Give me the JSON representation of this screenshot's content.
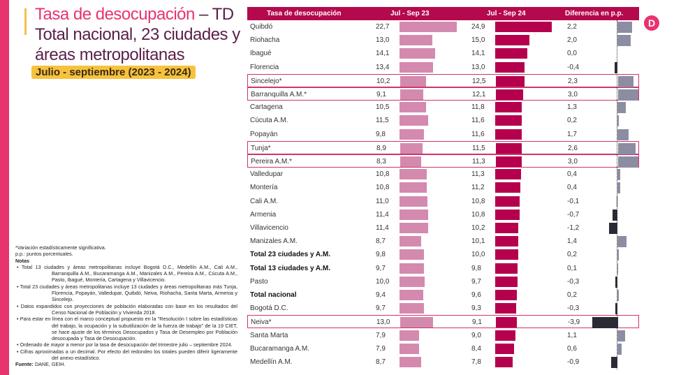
{
  "title": {
    "line1_pink": "Tasa de desocupación",
    "line1_dark": " – TD",
    "line2": "Total nacional, 23 ciudades y",
    "line3": "áreas metropolitanas",
    "period": "Julio - septiembre (2023 - 2024)"
  },
  "logo": "D",
  "notes": {
    "sig": "*Variación estadísticamente significativa.",
    "pp": "p.p.: puntos porcentuales.",
    "heading": "Notas",
    "items": [
      "• Total 13 ciudades y áreas metropolitanas incluye Bogotá D.C., Medellín A.M., Cali A.M., Barranquilla A.M., Bucaramanga A.M., Manizales A.M., Pereira A.M., Cúcuta A.M., Pasto, Ibagué, Montería, Cartagena y Villavicencio.",
      "• Total 23 ciudades y áreas metropolitanas incluye 13 ciudades y áreas metropolitanas más Tunja, Florencia, Popayán, Valledupar, Quibdó, Neiva, Riohacha, Santa Marta, Armenia y Sincelejo.",
      "• Datos expandidos con proyecciones de población elaboradas con base en los resultados del Censo Nacional de Población y Vivienda 2018.",
      "• Para estar en línea con el marco conceptual propuesto en la \"Resolución I sobre las estadísticas del trabajo, la ocupación y la subutilización de la fuerza de trabajo\" de la 19 CIET, se hace ajuste de los términos Desocupados y Tasa de Desempleo por Población desocupada y Tasa de Desocupación.",
      "• Ordenado de mayor a menor por la tasa de desocupación del trimestre julio – septiembre 2024.",
      "• Cifras aproximadas a un decimal. Por efecto del redondeo los totales pueden diferir ligeramente del anexo estadístico."
    ],
    "source_label": "Fuente:",
    "source": " DANE, GEIH."
  },
  "chart_data": {
    "type": "table",
    "columns": [
      "Tasa de desocupación",
      "Jul - Sep 23",
      "Jul - Sep 24",
      "Diferencia en p.p."
    ],
    "colors": {
      "sep23": "#d48aae",
      "sep24": "#b5004e",
      "diff_pos": "#8c8ca2",
      "diff_neg": "#2b2b36",
      "header": "#b5094e",
      "highlight": "#d2336a"
    },
    "rows": [
      {
        "name": "Quibdó",
        "v23": "22,7",
        "v24": "24,9",
        "diff": "2,2"
      },
      {
        "name": "Riohacha",
        "v23": "13,0",
        "v24": "15,0",
        "diff": "2,0"
      },
      {
        "name": "Ibagué",
        "v23": "14,1",
        "v24": "14,1",
        "diff": "0,0"
      },
      {
        "name": "Florencia",
        "v23": "13,4",
        "v24": "13,0",
        "diff": "-0,4"
      },
      {
        "name": "Sincelejo*",
        "v23": "10,2",
        "v24": "12,5",
        "diff": "2,3",
        "sig": true
      },
      {
        "name": "Barranquilla A.M.*",
        "v23": "9,1",
        "v24": "12,1",
        "diff": "3,0",
        "sig": true
      },
      {
        "name": "Cartagena",
        "v23": "10,5",
        "v24": "11,8",
        "diff": "1,3"
      },
      {
        "name": "Cúcuta A.M.",
        "v23": "11,5",
        "v24": "11,6",
        "diff": "0,2"
      },
      {
        "name": "Popayán",
        "v23": "9,8",
        "v24": "11,6",
        "diff": "1,7"
      },
      {
        "name": "Tunja*",
        "v23": "8,9",
        "v24": "11,5",
        "diff": "2,6",
        "sig": true
      },
      {
        "name": "Pereira A.M.*",
        "v23": "8,3",
        "v24": "11,3",
        "diff": "3,0",
        "sig": true
      },
      {
        "name": "Valledupar",
        "v23": "10,8",
        "v24": "11,3",
        "diff": "0,4"
      },
      {
        "name": "Montería",
        "v23": "10,8",
        "v24": "11,2",
        "diff": "0,4"
      },
      {
        "name": "Cali A.M.",
        "v23": "11,0",
        "v24": "10,8",
        "diff": "-0,1"
      },
      {
        "name": "Armenia",
        "v23": "11,4",
        "v24": "10,8",
        "diff": "-0,7"
      },
      {
        "name": "Villavicencio",
        "v23": "11,4",
        "v24": "10,2",
        "diff": "-1,2"
      },
      {
        "name": "Manizales A.M.",
        "v23": "8,7",
        "v24": "10,1",
        "diff": "1,4"
      },
      {
        "name": "Total 23 ciudades y A.M.",
        "v23": "9,8",
        "v24": "10,0",
        "diff": "0,2",
        "bold": true
      },
      {
        "name": "Total 13 ciudades y A.M.",
        "v23": "9,7",
        "v24": "9,8",
        "diff": "0,1",
        "bold": true
      },
      {
        "name": "Pasto",
        "v23": "10,0",
        "v24": "9,7",
        "diff": "-0,3"
      },
      {
        "name": "Total nacional",
        "v23": "9,4",
        "v24": "9,6",
        "diff": "0,2",
        "bold": true
      },
      {
        "name": "Bogotá D.C.",
        "v23": "9,7",
        "v24": "9,3",
        "diff": "-0,3"
      },
      {
        "name": "Neiva*",
        "v23": "13,0",
        "v24": "9,1",
        "diff": "-3,9",
        "sig": true
      },
      {
        "name": "Santa Marta",
        "v23": "7,9",
        "v24": "9,0",
        "diff": "1,1"
      },
      {
        "name": "Bucaramanga A.M.",
        "v23": "7,9",
        "v24": "8,4",
        "diff": "0,6"
      },
      {
        "name": "Medellín A.M.",
        "v23": "8,7",
        "v24": "7,8",
        "diff": "-0,9"
      }
    ]
  }
}
